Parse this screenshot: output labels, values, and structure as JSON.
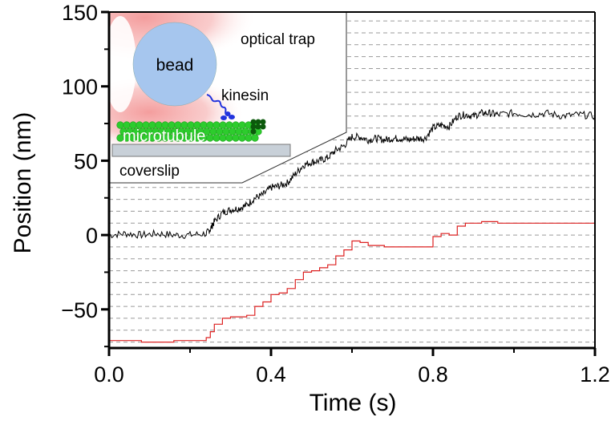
{
  "chart_data": {
    "type": "line",
    "xlabel": "Time (s)",
    "ylabel": "Position (nm)",
    "xlim": [
      0.0,
      1.2
    ],
    "ylim": [
      -76,
      150
    ],
    "x_ticks": [
      0.0,
      0.4,
      0.8,
      1.2
    ],
    "x_tick_labels": [
      "0.0",
      "0.4",
      "0.8",
      "1.2"
    ],
    "y_ticks": [
      -50,
      0,
      50,
      100,
      150
    ],
    "y_tick_labels": [
      "−50",
      "0",
      "50",
      "100",
      "150"
    ],
    "grid": "horizontal dashed lines every 8 nm",
    "series": [
      {
        "color": "#000000",
        "style": "noisy trace",
        "x": [
          0.0,
          0.04,
          0.08,
          0.12,
          0.16,
          0.2,
          0.24,
          0.25,
          0.26,
          0.28,
          0.3,
          0.32,
          0.34,
          0.36,
          0.38,
          0.4,
          0.42,
          0.44,
          0.46,
          0.48,
          0.5,
          0.52,
          0.54,
          0.56,
          0.58,
          0.6,
          0.62,
          0.64,
          0.66,
          0.68,
          0.7,
          0.72,
          0.74,
          0.76,
          0.78,
          0.8,
          0.82,
          0.84,
          0.86,
          0.88,
          0.9,
          0.92,
          0.94,
          0.96,
          1.0,
          1.04,
          1.08,
          1.12,
          1.16,
          1.2
        ],
        "y": [
          0,
          1,
          0,
          1,
          0,
          0,
          1,
          4,
          9,
          15,
          17,
          18,
          20,
          25,
          27,
          32,
          33,
          35,
          41,
          47,
          49,
          50,
          52,
          57,
          60,
          66,
          66,
          64,
          65,
          64,
          65,
          65,
          64,
          65,
          65,
          72,
          74,
          73,
          80,
          81,
          80,
          82,
          82,
          81,
          82,
          81,
          82,
          80,
          81,
          80
        ]
      },
      {
        "color": "#dd2222",
        "style": "stepwise fit",
        "x": [
          0.0,
          0.04,
          0.08,
          0.12,
          0.16,
          0.2,
          0.24,
          0.25,
          0.26,
          0.28,
          0.3,
          0.32,
          0.34,
          0.36,
          0.38,
          0.4,
          0.42,
          0.44,
          0.46,
          0.48,
          0.5,
          0.52,
          0.54,
          0.56,
          0.58,
          0.6,
          0.62,
          0.64,
          0.66,
          0.68,
          0.7,
          0.72,
          0.74,
          0.76,
          0.78,
          0.8,
          0.82,
          0.84,
          0.86,
          0.88,
          0.9,
          0.92,
          0.94,
          0.96,
          1.0,
          1.04,
          1.08,
          1.12,
          1.16,
          1.2
        ],
        "y": [
          -71,
          -71,
          -72,
          -72,
          -71,
          -71,
          -69,
          -65,
          -60,
          -56,
          -55,
          -55,
          -54,
          -48,
          -45,
          -40,
          -39,
          -36,
          -30,
          -25,
          -24,
          -22,
          -20,
          -14,
          -10,
          -4,
          -5,
          -7,
          -7,
          -8,
          -8,
          -8,
          -8,
          -8,
          -8,
          -1,
          1,
          0,
          6,
          8,
          8,
          9,
          9,
          8,
          8,
          8,
          8,
          8,
          8,
          8
        ]
      }
    ],
    "inset": {
      "labels": {
        "optical_trap": "optical trap",
        "bead": "bead",
        "kinesin": "kinesin",
        "microtubule": "microtubule",
        "coverslip": "coverslip"
      },
      "colors": {
        "trap": "#f7b6b6",
        "bead": "#a6c6ee",
        "microtubule": "#2dcc2d",
        "kinesin": "#2233dd",
        "coverslip": "#c8d0d8"
      }
    }
  }
}
